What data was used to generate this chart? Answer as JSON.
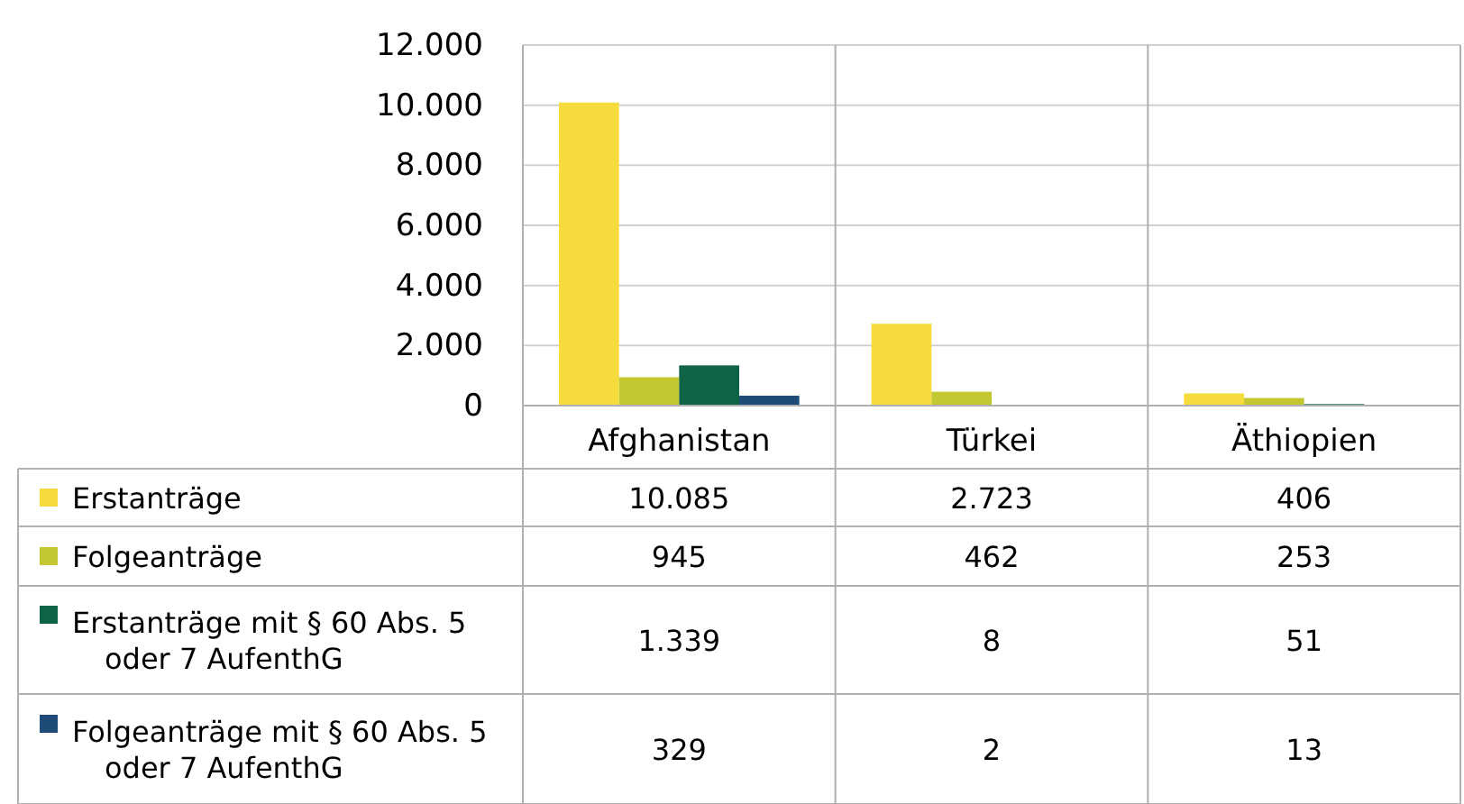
{
  "chart_data": {
    "type": "bar",
    "categories": [
      "Afghanistan",
      "Türkei",
      "Äthiopien"
    ],
    "series": [
      {
        "name": "Erstanträge",
        "color": "#f5dc3c",
        "values": [
          10085,
          2723,
          406
        ],
        "value_labels": [
          "10.085",
          "2.723",
          "406"
        ]
      },
      {
        "name": "Folgeanträge",
        "color": "#c3c832",
        "values": [
          945,
          462,
          253
        ],
        "value_labels": [
          "945",
          "462",
          "253"
        ]
      },
      {
        "name": "Erstanträge mit § 60 Abs. 5 oder 7 AufenthG",
        "color": "#0f6446",
        "values": [
          1339,
          8,
          51
        ],
        "value_labels": [
          "1.339",
          "8",
          "51"
        ]
      },
      {
        "name": "Folgeanträge mit § 60 Abs. 5 oder 7 AufenthG",
        "color": "#1e4b78",
        "values": [
          329,
          2,
          13
        ],
        "value_labels": [
          "329",
          "2",
          "13"
        ]
      }
    ],
    "ylim": [
      0,
      12000
    ],
    "yticks": [
      0,
      {
        "value": 2000,
        "label": "2.000"
      },
      {
        "value": 4000,
        "label": "4.000"
      },
      {
        "value": 6000,
        "label": "6.000"
      },
      {
        "value": 8000,
        "label": "8.000"
      },
      {
        "value": 10000,
        "label": "10.000"
      },
      {
        "value": 12000,
        "label": "12.000"
      }
    ],
    "grid": "y",
    "legend": "bottom"
  }
}
